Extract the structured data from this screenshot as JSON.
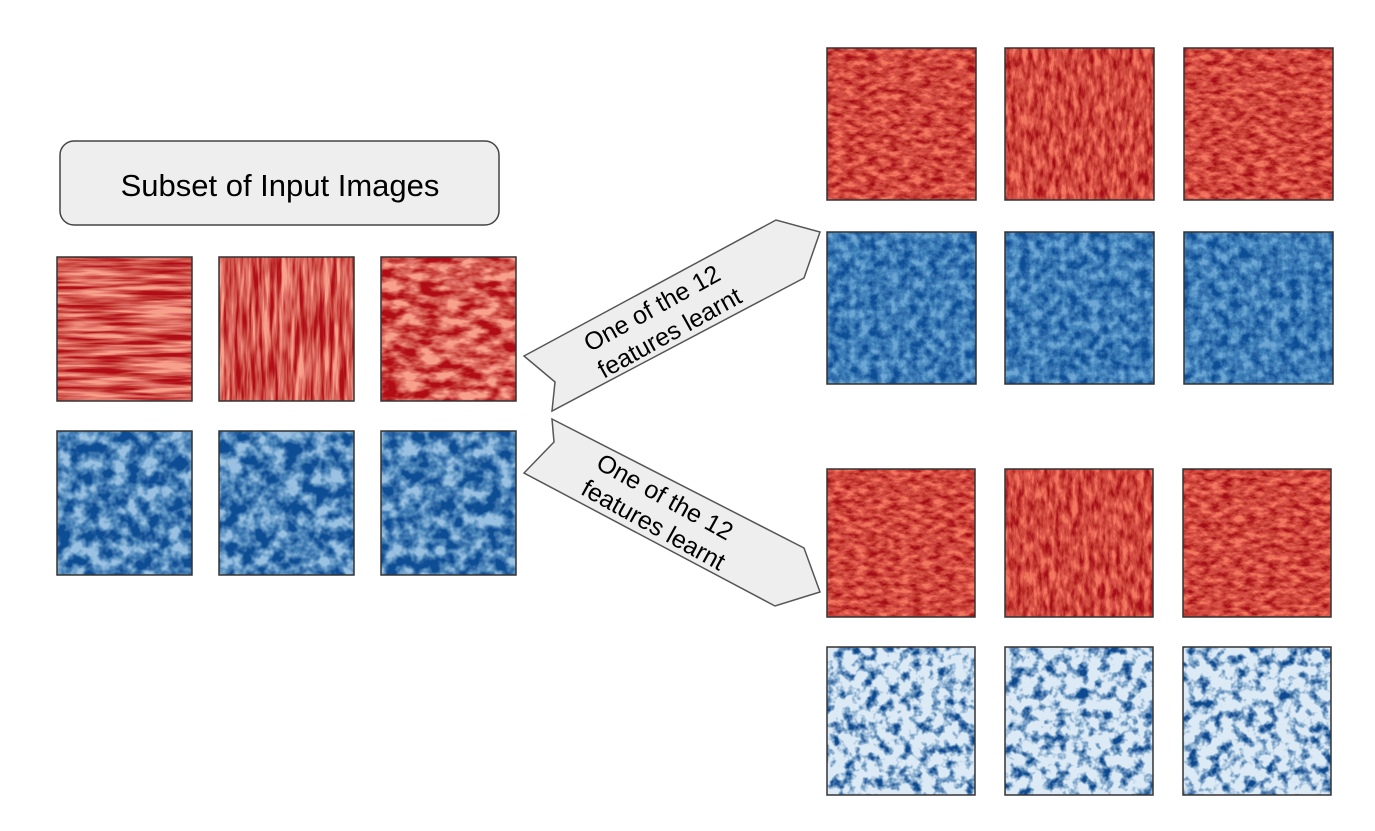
{
  "title": {
    "label": "Subset of Input Images"
  },
  "arrows": {
    "top": {
      "line1": "One of the 12",
      "line2": "features learnt"
    },
    "bottom": {
      "line1": "One of the 12",
      "line2": "features learnt"
    }
  },
  "palettes": {
    "red": {
      "light": "#fde0d2",
      "mid": "#f0553a",
      "dark": "#b01015"
    },
    "blue": {
      "light": "#dceaf6",
      "mid": "#4a90c8",
      "dark": "#0a4d94"
    }
  },
  "groups": {
    "input_images": {
      "rows": 2,
      "cols": 3,
      "row_colors": [
        "red",
        "blue"
      ],
      "texture": [
        "streaks",
        "blobs"
      ]
    },
    "feature_top": {
      "rows": 2,
      "cols": 3,
      "row_colors": [
        "red",
        "blue"
      ],
      "texture": [
        "noise-streaks",
        "noise-blobs"
      ]
    },
    "feature_bottom": {
      "rows": 2,
      "cols": 3,
      "row_colors": [
        "red",
        "blue"
      ],
      "texture": [
        "noise-streaks",
        "noise-blobs-light"
      ]
    }
  }
}
